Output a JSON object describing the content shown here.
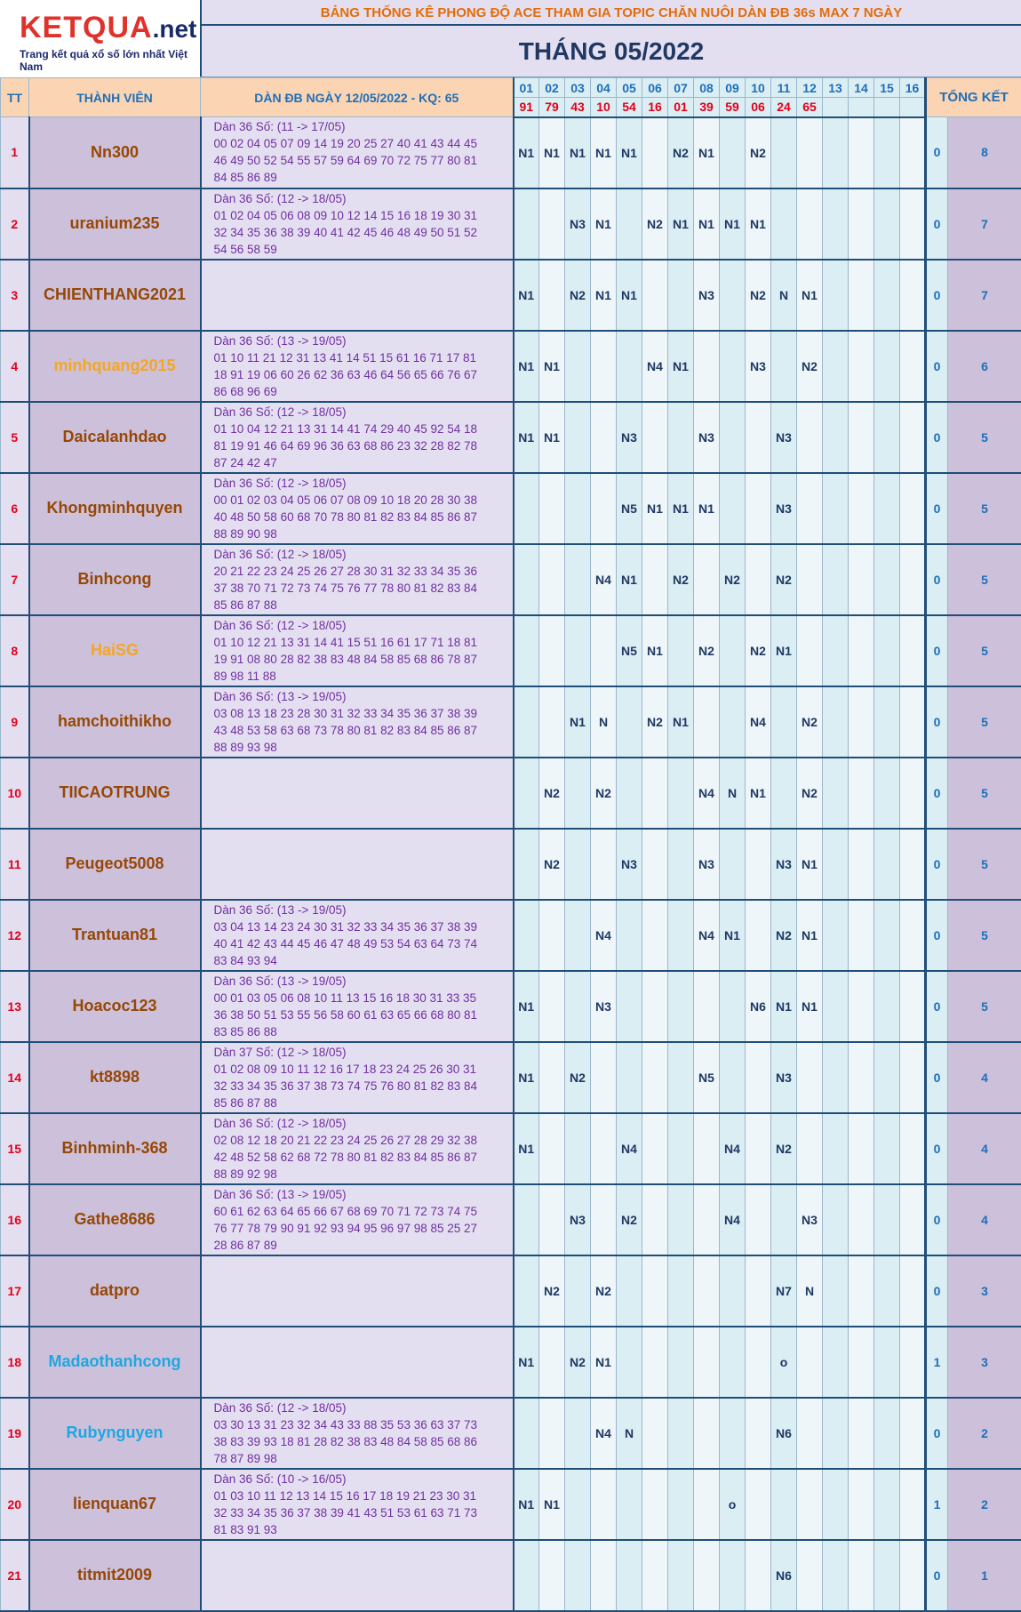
{
  "header": {
    "brand": "KETQUA",
    "brand_suffix": ".net",
    "tagline": "Trang kết quả xổ số lớn nhất Việt Nam",
    "title": "BẢNG THỐNG KÊ PHONG ĐỘ ACE THAM GIA TOPIC CHĂN NUÔI DÀN ĐB 36s MAX 7 NGÀY",
    "month": "THÁNG 05/2022"
  },
  "columns": {
    "tt": "TT",
    "member": "THÀNH VIÊN",
    "dan": "DÀN ĐB NGÀY 12/05/2022 - KQ: 65",
    "days": [
      "01",
      "02",
      "03",
      "04",
      "05",
      "06",
      "07",
      "08",
      "09",
      "10",
      "11",
      "12",
      "13",
      "14",
      "15",
      "16"
    ],
    "results": [
      "91",
      "79",
      "43",
      "10",
      "54",
      "16",
      "01",
      "39",
      "59",
      "06",
      "24",
      "65",
      null,
      null,
      null,
      null
    ],
    "total": "TỔNG KẾT"
  },
  "rows": [
    {
      "tt": 1,
      "name": "Nn300",
      "name_color": "#974706",
      "dan": {
        "title": "Dàn 36 Số: (11 -> 17/05)",
        "lines": [
          "00 02 04 05 07 09 14 19 20 25 27 40 41 43 44 45",
          "46 49 50 52 54 55 57 59 64 69 70 72 75 77 80 81",
          "84 85 86 89"
        ]
      },
      "cells": [
        "N1",
        "N1",
        "N1",
        "N1",
        "N1",
        null,
        "N2",
        "N1",
        null,
        "N2",
        null,
        null,
        null,
        null,
        null,
        null
      ],
      "total1": 0,
      "total2": 8
    },
    {
      "tt": 2,
      "name": "uranium235",
      "name_color": "#974706",
      "dan": {
        "title": "Dàn 36 Số: (12 -> 18/05)",
        "lines": [
          "01 02 04 05 06 08 09 10 12 14 15 16 18 19 30 31",
          "32 34 35 36 38 39 40 41 42 45 46 48 49 50 51 52",
          "54 56 58 59"
        ]
      },
      "cells": [
        null,
        null,
        "N3",
        "N1",
        null,
        "N2",
        "N1",
        "N1",
        "N1",
        "N1",
        null,
        null,
        null,
        null,
        null,
        null
      ],
      "total1": 0,
      "total2": 7
    },
    {
      "tt": 3,
      "name": "CHIENTHANG2021",
      "name_color": "#974706",
      "cells": [
        "N1",
        null,
        "N2",
        "N1",
        "N1",
        null,
        null,
        "N3",
        null,
        "N2",
        "N",
        "N1",
        null,
        null,
        null,
        null
      ],
      "total1": 0,
      "total2": 7
    },
    {
      "tt": 4,
      "name": "minhquang2015",
      "name_color": "#f5a623",
      "dan": {
        "title": "Dàn 36 Số: (13 -> 19/05)",
        "lines": [
          "01 10 11 21 12 31 13 41 14 51 15 61 16 71 17 81",
          "18 91 19 06 60 26 62 36 63 46 64 56 65 66 76 67",
          "86 68 96 69"
        ]
      },
      "cells": [
        "N1",
        "N1",
        null,
        null,
        null,
        "N4",
        "N1",
        null,
        null,
        "N3",
        null,
        "N2",
        null,
        null,
        null,
        null
      ],
      "total1": 0,
      "total2": 6
    },
    {
      "tt": 5,
      "name": "Daicalanhdao",
      "name_color": "#974706",
      "dan": {
        "title": "Dàn 36 Số: (12 -> 18/05)",
        "lines": [
          "01 10 04 12 21 13 31 14 41 74 29 40 45 92 54 18",
          "81 19 91 46 64 69 96 36 63 68 86 23 32 28 82 78",
          "87 24 42 47"
        ]
      },
      "cells": [
        "N1",
        "N1",
        null,
        null,
        "N3",
        null,
        null,
        "N3",
        null,
        null,
        "N3",
        null,
        null,
        null,
        null,
        null
      ],
      "total1": 0,
      "total2": 5
    },
    {
      "tt": 6,
      "name": "Khongminhquyen",
      "name_color": "#974706",
      "dan": {
        "title": "Dàn 36 Số: (12 -> 18/05)",
        "lines": [
          "00 01 02 03 04 05 06 07 08 09 10 18 20 28 30 38",
          "40 48 50 58 60 68 70 78 80 81 82 83 84 85 86 87",
          "88 89 90 98"
        ]
      },
      "cells": [
        null,
        null,
        null,
        null,
        "N5",
        "N1",
        "N1",
        "N1",
        null,
        null,
        "N3",
        null,
        null,
        null,
        null,
        null
      ],
      "total1": 0,
      "total2": 5
    },
    {
      "tt": 7,
      "name": "Binhcong",
      "name_color": "#974706",
      "dan": {
        "title": "Dàn 36 Số: (12 -> 18/05)",
        "lines": [
          "20 21 22 23 24 25 26 27 28 30 31 32 33 34 35 36",
          "37 38 70 71 72 73 74 75 76 77 78 80 81 82 83 84",
          "85 86 87 88"
        ]
      },
      "cells": [
        null,
        null,
        null,
        "N4",
        "N1",
        null,
        "N2",
        null,
        "N2",
        null,
        "N2",
        null,
        null,
        null,
        null,
        null
      ],
      "total1": 0,
      "total2": 5
    },
    {
      "tt": 8,
      "name": "HaiSG",
      "name_color": "#f5a623",
      "dan": {
        "title": "Dàn 36 Số: (12 -> 18/05)",
        "lines": [
          "01 10 12 21 13 31 14 41 15 51 16 61 17 71 18 81",
          "19 91 08 80 28 82 38 83 48 84 58 85 68 86 78 87",
          "89 98 11 88"
        ]
      },
      "cells": [
        null,
        null,
        null,
        null,
        "N5",
        "N1",
        null,
        "N2",
        null,
        "N2",
        "N1",
        null,
        null,
        null,
        null,
        null
      ],
      "total1": 0,
      "total2": 5
    },
    {
      "tt": 9,
      "name": "hamchoithikho",
      "name_color": "#974706",
      "dan": {
        "title": "Dàn 36 Số: (13 -> 19/05)",
        "lines": [
          "03 08 13 18 23 28 30 31 32 33 34 35 36 37 38 39",
          "43 48 53 58 63 68 73 78 80 81 82 83 84 85 86 87",
          "88 89 93 98"
        ]
      },
      "cells": [
        null,
        null,
        "N1",
        "N",
        null,
        "N2",
        "N1",
        null,
        null,
        "N4",
        null,
        "N2",
        null,
        null,
        null,
        null
      ],
      "total1": 0,
      "total2": 5
    },
    {
      "tt": 10,
      "name": "TIICAOTRUNG",
      "name_color": "#974706",
      "cells": [
        null,
        "N2",
        null,
        "N2",
        null,
        null,
        null,
        "N4",
        "N",
        "N1",
        null,
        "N2",
        null,
        null,
        null,
        null
      ],
      "total1": 0,
      "total2": 5
    },
    {
      "tt": 11,
      "name": "Peugeot5008",
      "name_color": "#974706",
      "cells": [
        null,
        "N2",
        null,
        null,
        "N3",
        null,
        null,
        "N3",
        null,
        null,
        "N3",
        "N1",
        null,
        null,
        null,
        null
      ],
      "total1": 0,
      "total2": 5
    },
    {
      "tt": 12,
      "name": "Trantuan81",
      "name_color": "#974706",
      "dan": {
        "title": "Dàn 36 Số: (13 -> 19/05)",
        "lines": [
          "03 04 13 14 23 24 30 31 32 33 34 35 36 37 38 39",
          "40 41 42 43 44 45 46 47 48 49 53 54 63 64 73 74",
          "83 84 93 94"
        ]
      },
      "cells": [
        null,
        null,
        null,
        "N4",
        null,
        null,
        null,
        "N4",
        "N1",
        null,
        "N2",
        "N1",
        null,
        null,
        null,
        null
      ],
      "total1": 0,
      "total2": 5
    },
    {
      "tt": 13,
      "name": "Hoacoc123",
      "name_color": "#974706",
      "dan": {
        "title": "Dàn 36 Số: (13 -> 19/05)",
        "lines": [
          "00 01 03 05 06 08 10 11 13 15 16 18 30 31 33 35",
          "36 38 50 51 53 55 56 58 60 61 63 65 66 68 80 81",
          "83 85 86 88"
        ]
      },
      "cells": [
        "N1",
        null,
        null,
        "N3",
        null,
        null,
        null,
        null,
        null,
        "N6",
        "N1",
        "N1",
        null,
        null,
        null,
        null
      ],
      "total1": 0,
      "total2": 5
    },
    {
      "tt": 14,
      "name": "kt8898",
      "name_color": "#974706",
      "dan": {
        "title": "Dàn 37 Số: (12 -> 18/05)",
        "lines": [
          "01 02 08 09 10 11 12 16 17 18 23 24 25 26 30 31",
          "32 33 34 35 36 37 38 73 74 75 76 80 81 82 83 84",
          "85 86 87 88"
        ]
      },
      "cells": [
        "N1",
        null,
        "N2",
        null,
        null,
        null,
        null,
        "N5",
        null,
        null,
        "N3",
        null,
        null,
        null,
        null,
        null
      ],
      "total1": 0,
      "total2": 4
    },
    {
      "tt": 15,
      "name": "Binhminh-368",
      "name_color": "#974706",
      "dan": {
        "title": "Dàn 36 Số: (12 -> 18/05)",
        "lines": [
          "02 08 12 18 20 21 22 23 24 25 26 27 28 29 32 38",
          "42 48 52 58 62 68 72 78 80 81 82 83 84 85 86 87",
          "88 89 92 98"
        ]
      },
      "cells": [
        "N1",
        null,
        null,
        null,
        "N4",
        null,
        null,
        null,
        "N4",
        null,
        "N2",
        null,
        null,
        null,
        null,
        null
      ],
      "total1": 0,
      "total2": 4
    },
    {
      "tt": 16,
      "name": "Gathe8686",
      "name_color": "#974706",
      "dan": {
        "title": "Dàn 36 Số: (13 -> 19/05)",
        "lines": [
          "60 61 62 63 64 65 66 67 68 69 70 71 72 73 74 75",
          "76 77 78 79 90 91 92 93 94 95 96 97 98 85 25 27",
          "28 86 87 89"
        ]
      },
      "cells": [
        null,
        null,
        "N3",
        null,
        "N2",
        null,
        null,
        null,
        "N4",
        null,
        null,
        "N3",
        null,
        null,
        null,
        null
      ],
      "total1": 0,
      "total2": 4
    },
    {
      "tt": 17,
      "name": "datpro",
      "name_color": "#974706",
      "cells": [
        null,
        "N2",
        null,
        "N2",
        null,
        null,
        null,
        null,
        null,
        null,
        "N7",
        "N",
        null,
        null,
        null,
        null
      ],
      "total1": 0,
      "total2": 3
    },
    {
      "tt": 18,
      "name": "Madaothanhcong",
      "name_color": "#1ea7e1",
      "cells": [
        "N1",
        null,
        "N2",
        "N1",
        null,
        null,
        null,
        null,
        null,
        null,
        "o",
        null,
        null,
        null,
        null,
        null
      ],
      "total1": 1,
      "total2": 3
    },
    {
      "tt": 19,
      "name": "Rubynguyen",
      "name_color": "#1ea7e1",
      "dan": {
        "title": "Dàn 36 Số: (12 -> 18/05)",
        "lines": [
          "03 30 13 31 23 32 34 43 33 88 35 53 36 63 37 73",
          "38 83 39 93 18 81 28 82 38 83 48 84 58 85 68 86",
          "78 87 89 98"
        ]
      },
      "cells": [
        null,
        null,
        null,
        "N4",
        "N",
        null,
        null,
        null,
        null,
        null,
        "N6",
        null,
        null,
        null,
        null,
        null
      ],
      "total1": 0,
      "total2": 2
    },
    {
      "tt": 20,
      "name": "lienquan67",
      "name_color": "#974706",
      "dan": {
        "title": "Dàn 36 Số: (10 -> 16/05)",
        "lines": [
          "01 03 10 11 12 13 14 15 16 17 18 19 21 23 30 31",
          "32 33 34 35 36 37 38 39 41 43 51 53 61 63 71 73",
          "81 83 91 93"
        ]
      },
      "cells": [
        "N1",
        "N1",
        null,
        null,
        null,
        null,
        null,
        null,
        "o",
        null,
        null,
        null,
        null,
        null,
        null,
        null
      ],
      "total1": 1,
      "total2": 2
    },
    {
      "tt": 21,
      "name": "titmit2009",
      "name_color": "#974706",
      "cells": [
        null,
        null,
        null,
        null,
        null,
        null,
        null,
        null,
        null,
        null,
        "N6",
        null,
        null,
        null,
        null,
        null
      ],
      "total1": 0,
      "total2": 1
    }
  ]
}
